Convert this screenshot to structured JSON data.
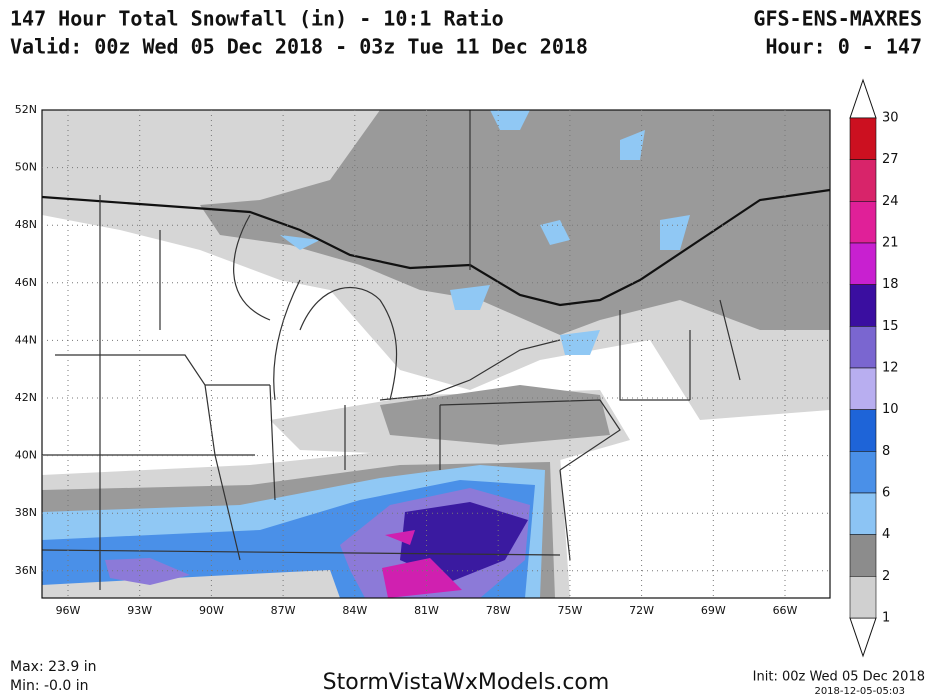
{
  "header": {
    "title": "147 Hour Total Snowfall (in) - 10:1 Ratio",
    "valid": "Valid: 00z Wed 05 Dec 2018 - 03z Tue 11 Dec 2018",
    "model": "GFS-ENS-MAXRES",
    "hours": "Hour: 0 - 147"
  },
  "map": {
    "latitudes": [
      "52N",
      "50N",
      "48N",
      "46N",
      "44N",
      "42N",
      "40N",
      "38N",
      "36N"
    ],
    "longitudes": [
      "96W",
      "93W",
      "90W",
      "87W",
      "84W",
      "81W",
      "78W",
      "75W",
      "72W",
      "69W",
      "66W"
    ]
  },
  "colorbar": {
    "levels": [
      30,
      27,
      24,
      21,
      18,
      15,
      12,
      10,
      8,
      6,
      4,
      2,
      1
    ],
    "colors": [
      "#cc1020",
      "#d8246a",
      "#e02098",
      "#c820d0",
      "#3a0ea0",
      "#7a66d0",
      "#b8aef0",
      "#1e64d8",
      "#4a90e8",
      "#8cc4f4",
      "#8c8c8c",
      "#d0d0d0"
    ]
  },
  "footer": {
    "max": "Max: 23.9 in",
    "min": "Min: -0.0 in",
    "site": "StormVistaWxModels.com",
    "init": "Init: 00z Wed 05 Dec 2018",
    "stamp": "2018-12-05-05:03"
  }
}
